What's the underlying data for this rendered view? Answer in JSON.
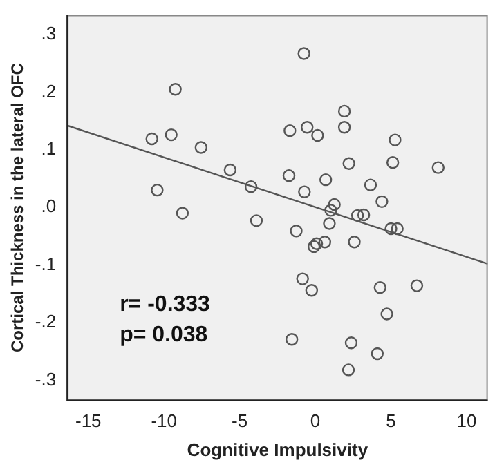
{
  "chart_data": {
    "type": "scatter",
    "xlabel": "Cognitive Impulsivity",
    "ylabel": "Cortical Thickness in the lateral OFC",
    "xlim": [
      -16.4,
      11.4
    ],
    "ylim": [
      -0.335,
      0.334
    ],
    "xticks": [
      -15,
      -10,
      -5,
      0,
      5,
      10
    ],
    "yticks": [
      {
        "value": -0.3,
        "label": "-.3"
      },
      {
        "value": -0.2,
        "label": "-.2"
      },
      {
        "value": -0.1,
        "label": "-.1"
      },
      {
        "value": 0,
        "label": ".0"
      },
      {
        "value": 0.1,
        "label": ".1"
      },
      {
        "value": 0.2,
        "label": ".2"
      },
      {
        "value": 0.3,
        "label": ".3"
      }
    ],
    "grid": false,
    "marker": "circle",
    "annotations": [
      "r= -0.333",
      "p= 0.038"
    ],
    "series": [
      {
        "type": "scatter",
        "color": "#555555",
        "x": [
          -9.25,
          -10.8,
          -9.52,
          -7.55,
          -5.63,
          -4.25,
          -10.45,
          -8.78,
          -3.89,
          -0.75,
          1.92,
          -1.68,
          -0.54,
          0.15,
          1.92,
          5.27,
          2.22,
          5.12,
          8.12,
          -1.74,
          0.69,
          -0.72,
          3.65,
          4.4,
          1.26,
          1.02,
          2.79,
          3.2,
          0.93,
          5.0,
          5.42,
          -1.26,
          0.63,
          0.09,
          -0.09,
          2.58,
          -0.84,
          -0.24,
          4.28,
          6.71,
          4.73,
          -1.55,
          2.37,
          4.1,
          2.19
        ],
        "values": [
          0.205,
          0.119,
          0.126,
          0.104,
          0.065,
          0.036,
          0.03,
          -0.01,
          -0.023,
          0.267,
          0.167,
          0.133,
          0.139,
          0.125,
          0.139,
          0.117,
          0.076,
          0.078,
          0.069,
          0.055,
          0.048,
          0.027,
          0.039,
          0.01,
          0.005,
          -0.005,
          -0.014,
          -0.013,
          -0.028,
          -0.037,
          -0.037,
          -0.041,
          -0.06,
          -0.063,
          -0.068,
          -0.06,
          -0.124,
          -0.144,
          -0.139,
          -0.136,
          -0.185,
          -0.229,
          -0.235,
          -0.254,
          -0.282
        ]
      },
      {
        "type": "line",
        "color": "#555555",
        "marker": "none",
        "x": [
          -16.4,
          11.4
        ],
        "values": [
          0.142,
          -0.098
        ]
      }
    ]
  }
}
